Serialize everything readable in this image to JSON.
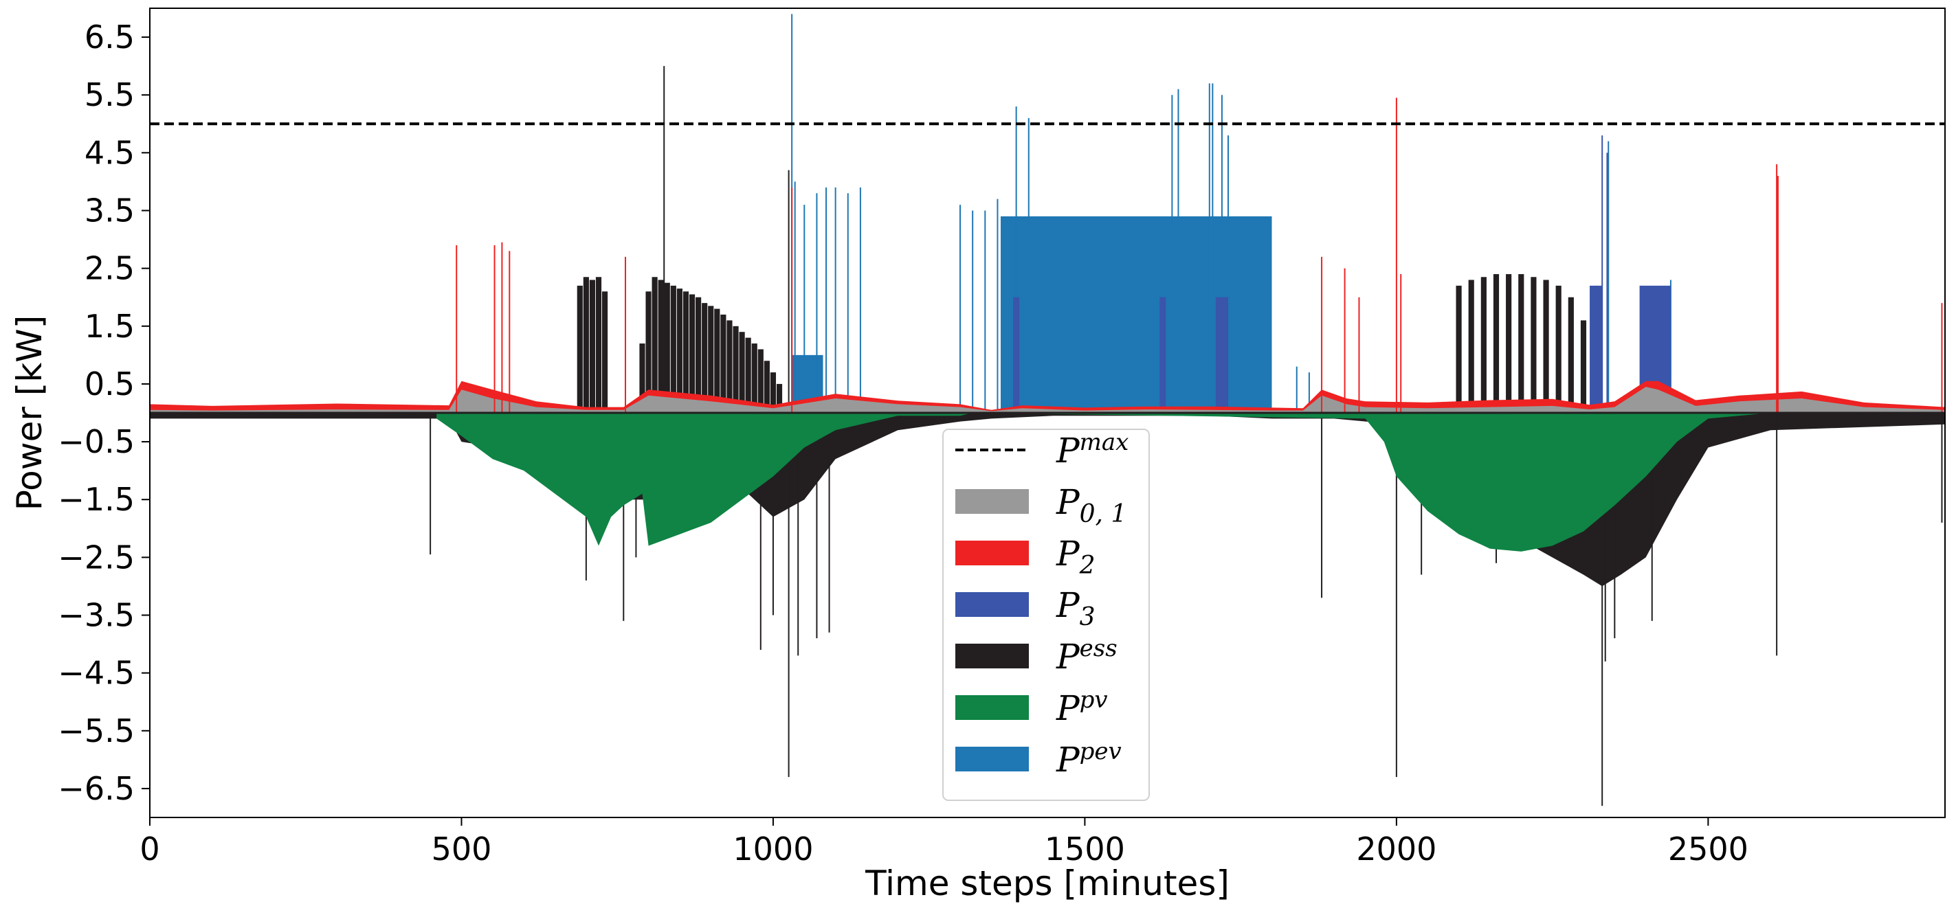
{
  "chart_data": {
    "type": "bar",
    "title": "",
    "xlabel": "Time steps [minutes]",
    "ylabel": "Power [kW]",
    "xlim": [
      0,
      2880
    ],
    "ylim": [
      -7.0,
      7.0
    ],
    "xticks": [
      0,
      500,
      1000,
      1500,
      2000,
      2500
    ],
    "xtick_labels": [
      "0",
      "500",
      "1000",
      "1500",
      "2000",
      "2500"
    ],
    "yticks": [
      6.5,
      5.5,
      4.5,
      3.5,
      2.5,
      1.5,
      0.5,
      -0.5,
      -1.5,
      -2.5,
      -3.5,
      -4.5,
      -5.5,
      -6.5
    ],
    "ytick_labels": [
      "6.5",
      "5.5",
      "4.5",
      "3.5",
      "2.5",
      "1.5",
      "0.5",
      "−0.5",
      "−1.5",
      "−2.5",
      "−3.5",
      "−4.5",
      "−5.5",
      "−6.5"
    ],
    "pmax": 5.0,
    "legend_position": "center-bottom",
    "legend": [
      {
        "key": "pmax",
        "base": "P",
        "sup": "max",
        "sub": "",
        "color": "#000000",
        "style": "dashed"
      },
      {
        "key": "p01",
        "base": "P",
        "sup": "",
        "sub": "0, 1",
        "color": "#999999",
        "style": "patch"
      },
      {
        "key": "p2",
        "base": "P",
        "sup": "",
        "sub": "2",
        "color": "#ee2222",
        "style": "patch"
      },
      {
        "key": "p3",
        "base": "P",
        "sup": "",
        "sub": "3",
        "color": "#3a55aa",
        "style": "patch"
      },
      {
        "key": "pess",
        "base": "P",
        "sup": "ess",
        "sub": "",
        "color": "#231f20",
        "style": "patch"
      },
      {
        "key": "ppv",
        "base": "P",
        "sup": "pv",
        "sub": "",
        "color": "#0f8445",
        "style": "patch"
      },
      {
        "key": "ppev",
        "base": "P",
        "sup": "pev",
        "sub": "",
        "color": "#1f77b4",
        "style": "patch"
      }
    ],
    "colors": {
      "p01": "#999999",
      "p2": "#ee2222",
      "p3": "#3a55aa",
      "pess": "#231f20",
      "ppv": "#0f8445",
      "ppev": "#1f77b4"
    },
    "series": [
      {
        "name": "P_0,1",
        "type": "area",
        "x": [
          0,
          100,
          300,
          480,
          500,
          550,
          620,
          700,
          760,
          800,
          900,
          1000,
          1100,
          1200,
          1300,
          1350,
          1400,
          1500,
          1600,
          1700,
          1800,
          1850,
          1880,
          1920,
          1950,
          2050,
          2150,
          2250,
          2310,
          2350,
          2400,
          2420,
          2480,
          2550,
          2650,
          2750,
          2880
        ],
        "values": [
          0.05,
          0.04,
          0.06,
          0.05,
          0.4,
          0.25,
          0.1,
          0.05,
          0.05,
          0.3,
          0.2,
          0.08,
          0.25,
          0.15,
          0.1,
          0.03,
          0.08,
          0.04,
          0.06,
          0.05,
          0.04,
          0.04,
          0.3,
          0.15,
          0.1,
          0.08,
          0.1,
          0.12,
          0.06,
          0.1,
          0.45,
          0.4,
          0.12,
          0.2,
          0.25,
          0.1,
          0.05
        ]
      },
      {
        "name": "P_2",
        "type": "area_stack",
        "x": [
          0,
          100,
          300,
          480,
          500,
          550,
          620,
          700,
          760,
          800,
          900,
          1000,
          1100,
          1200,
          1300,
          1350,
          1400,
          1500,
          1600,
          1700,
          1800,
          1850,
          1880,
          1920,
          1950,
          2050,
          2150,
          2250,
          2310,
          2350,
          2400,
          2420,
          2480,
          2550,
          2650,
          2750,
          2880
        ],
        "values": [
          0.1,
          0.08,
          0.1,
          0.08,
          0.15,
          0.15,
          0.1,
          0.05,
          0.05,
          0.1,
          0.1,
          0.06,
          0.08,
          0.06,
          0.05,
          0.02,
          0.05,
          0.05,
          0.05,
          0.06,
          0.05,
          0.04,
          0.1,
          0.1,
          0.1,
          0.1,
          0.12,
          0.12,
          0.08,
          0.1,
          0.1,
          0.15,
          0.1,
          0.1,
          0.12,
          0.08,
          0.05
        ]
      },
      {
        "name": "P_2 spikes",
        "type": "spikes",
        "x": [
          492,
          553,
          565,
          577,
          763,
          1030,
          1880,
          1917,
          1940,
          2000,
          2007,
          2610,
          2612,
          2875
        ],
        "values": [
          2.9,
          2.9,
          2.95,
          2.8,
          2.7,
          3.9,
          2.7,
          2.5,
          2.0,
          5.45,
          2.4,
          4.3,
          4.1,
          1.9
        ]
      },
      {
        "name": "P_3",
        "type": "blocks",
        "blocks": [
          [
            1385,
            1395,
            2.0
          ],
          [
            1620,
            1630,
            2.0
          ],
          [
            1710,
            1730,
            2.0
          ],
          [
            2310,
            2330,
            2.2
          ],
          [
            2390,
            2440,
            2.2
          ]
        ],
        "spikes_x": [
          2330,
          2338
        ],
        "spikes_values": [
          4.8,
          4.5
        ]
      },
      {
        "name": "P_ess",
        "type": "bars",
        "x": [
          690,
          700,
          710,
          720,
          730,
          790,
          800,
          810,
          820,
          830,
          840,
          850,
          860,
          870,
          880,
          890,
          900,
          910,
          920,
          930,
          940,
          950,
          960,
          970,
          980,
          990,
          1000,
          1010,
          2100,
          2120,
          2140,
          2160,
          2180,
          2200,
          2220,
          2240,
          2260,
          2280,
          2300,
          2320
        ],
        "values": [
          2.2,
          2.35,
          2.3,
          2.35,
          2.1,
          1.2,
          2.1,
          2.35,
          2.3,
          2.25,
          2.2,
          2.15,
          2.1,
          2.05,
          2.0,
          1.9,
          1.85,
          1.8,
          1.7,
          1.6,
          1.5,
          1.4,
          1.3,
          1.2,
          1.1,
          0.9,
          0.7,
          0.5,
          2.2,
          2.3,
          2.35,
          2.4,
          2.4,
          2.4,
          2.35,
          2.3,
          2.2,
          2.0,
          1.6,
          1.0
        ],
        "spikes_x": [
          825,
          1025
        ],
        "spikes_values": [
          6.0,
          4.2
        ]
      },
      {
        "name": "P_ess negative",
        "type": "bars_negative",
        "x": [
          0,
          300,
          480,
          500,
          560,
          620,
          700,
          760,
          800,
          860,
          900,
          950,
          1000,
          1050,
          1100,
          1200,
          1300,
          1350,
          1450,
          1700,
          1800,
          1900,
          2000,
          2100,
          2200,
          2250,
          2300,
          2330,
          2360,
          2400,
          2450,
          2500,
          2600,
          2880
        ],
        "values": [
          -0.1,
          -0.1,
          -0.1,
          -0.5,
          -0.6,
          -0.8,
          -1.0,
          -1.5,
          -1.5,
          -1.4,
          -1.2,
          -1.3,
          -1.8,
          -1.5,
          -0.8,
          -0.3,
          -0.15,
          -0.1,
          -0.05,
          -0.05,
          -0.1,
          -0.1,
          -0.2,
          -1.0,
          -2.2,
          -2.5,
          -2.8,
          -3.0,
          -2.8,
          -2.5,
          -1.5,
          -0.6,
          -0.3,
          -0.2
        ],
        "spikes_x": [
          450,
          700,
          760,
          780,
          980,
          1000,
          1025,
          1040,
          1070,
          1090,
          1880,
          2000,
          2040,
          2160,
          2330,
          2335,
          2350,
          2410,
          2610,
          2875
        ],
        "spikes_values": [
          -2.45,
          -2.9,
          -3.6,
          -2.5,
          -4.1,
          -3.5,
          -6.3,
          -4.2,
          -3.9,
          -3.8,
          -3.2,
          -6.3,
          -2.8,
          -2.6,
          -6.8,
          -4.3,
          -3.9,
          -3.6,
          -4.2,
          -1.9
        ]
      },
      {
        "name": "P_pv",
        "type": "area",
        "x": [
          460,
          500,
          550,
          600,
          650,
          700,
          720,
          740,
          760,
          790,
          800,
          850,
          900,
          950,
          1000,
          1050,
          1100,
          1200,
          1300,
          1320,
          1950,
          1980,
          2000,
          2050,
          2100,
          2150,
          2200,
          2250,
          2300,
          2350,
          2400,
          2450,
          2500,
          2600
        ],
        "values": [
          -0.1,
          -0.4,
          -0.8,
          -1.0,
          -1.4,
          -1.8,
          -2.3,
          -1.8,
          -1.6,
          -1.4,
          -2.3,
          -2.1,
          -1.9,
          -1.5,
          -1.1,
          -0.6,
          -0.3,
          -0.05,
          -0.05,
          0,
          -0.1,
          -0.5,
          -1.1,
          -1.7,
          -2.1,
          -2.35,
          -2.4,
          -2.3,
          -2.05,
          -1.6,
          -1.1,
          -0.5,
          -0.1,
          0
        ]
      },
      {
        "name": "P_pev",
        "type": "blocks",
        "blocks": [
          [
            1030,
            1080,
            1.0
          ],
          [
            1365,
            1800,
            3.4
          ]
        ],
        "spikes_x": [
          1030,
          1035,
          1050,
          1070,
          1085,
          1100,
          1120,
          1140,
          1300,
          1320,
          1340,
          1360,
          1390,
          1410,
          1640,
          1650,
          1700,
          1705,
          1720,
          1730,
          1840,
          1860,
          2320,
          2340,
          2440
        ],
        "spikes_values": [
          6.9,
          4.0,
          3.6,
          3.8,
          3.9,
          3.9,
          3.8,
          3.9,
          3.6,
          3.5,
          3.5,
          3.7,
          5.3,
          5.1,
          5.5,
          5.6,
          5.7,
          5.7,
          5.5,
          4.8,
          0.8,
          0.7,
          2.2,
          4.7,
          2.3
        ]
      }
    ]
  }
}
